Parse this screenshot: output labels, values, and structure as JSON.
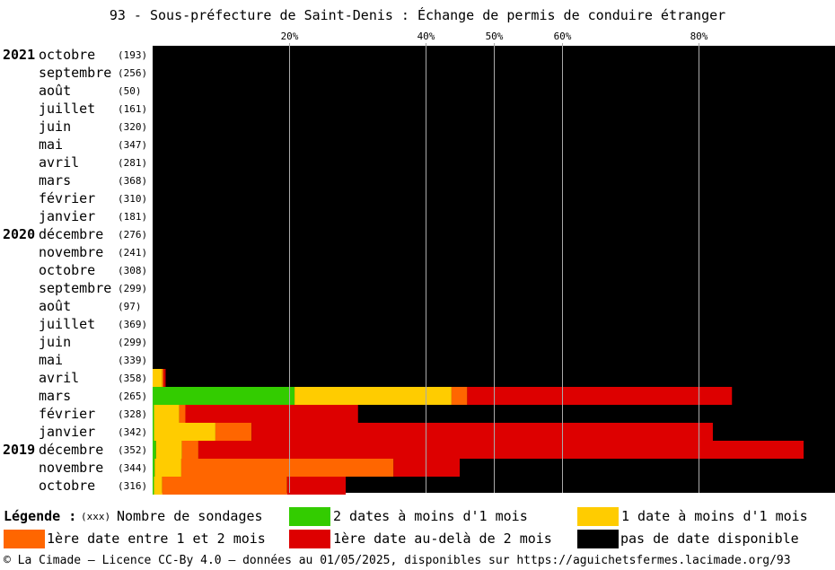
{
  "title": "93 - Sous-préfecture de Saint-Denis : Échange de permis de conduire étranger",
  "chart_data": {
    "type": "bar",
    "orientation": "horizontal",
    "stacked": true,
    "unit": "percent",
    "xlim": [
      0,
      100
    ],
    "x_ticks": [
      {
        "value": 20,
        "label": "20%"
      },
      {
        "value": 40,
        "label": "40%"
      },
      {
        "value": 50,
        "label": "50%"
      },
      {
        "value": 60,
        "label": "60%"
      },
      {
        "value": 80,
        "label": "80%"
      }
    ],
    "grid": true,
    "background_color": "#000000",
    "series": [
      {
        "name": "2 dates à moins d'1 mois",
        "color": "#33cc00"
      },
      {
        "name": "1 date à moins d'1 mois",
        "color": "#ffcc00"
      },
      {
        "name": "1ère date entre 1 et 2 mois",
        "color": "#ff6600"
      },
      {
        "name": "1ère date au-delà de 2 mois",
        "color": "#dd0000"
      },
      {
        "name": "pas de date disponible",
        "color": "#000000"
      }
    ],
    "rows": [
      {
        "year": "2021",
        "month": "octobre",
        "count": "(193)",
        "values": [
          0,
          0,
          0,
          0,
          100
        ]
      },
      {
        "year": "",
        "month": "septembre",
        "count": "(256)",
        "values": [
          0,
          0,
          0,
          0,
          100
        ]
      },
      {
        "year": "",
        "month": "août",
        "count": "(50)",
        "values": [
          0,
          0,
          0,
          0,
          100
        ]
      },
      {
        "year": "",
        "month": "juillet",
        "count": "(161)",
        "values": [
          0,
          0,
          0,
          0,
          100
        ]
      },
      {
        "year": "",
        "month": "juin",
        "count": "(320)",
        "values": [
          0,
          0,
          0,
          0,
          100
        ]
      },
      {
        "year": "",
        "month": "mai",
        "count": "(347)",
        "values": [
          0,
          0,
          0,
          0,
          100
        ]
      },
      {
        "year": "",
        "month": "avril",
        "count": "(281)",
        "values": [
          0,
          0,
          0,
          0,
          100
        ]
      },
      {
        "year": "",
        "month": "mars",
        "count": "(368)",
        "values": [
          0,
          0,
          0,
          0,
          100
        ]
      },
      {
        "year": "",
        "month": "février",
        "count": "(310)",
        "values": [
          0,
          0,
          0,
          0,
          100
        ]
      },
      {
        "year": "",
        "month": "janvier",
        "count": "(181)",
        "values": [
          0,
          0,
          0,
          0,
          100
        ]
      },
      {
        "year": "2020",
        "month": "décembre",
        "count": "(276)",
        "values": [
          0,
          0,
          0,
          0,
          100
        ]
      },
      {
        "year": "",
        "month": "novembre",
        "count": "(241)",
        "values": [
          0,
          0,
          0,
          0,
          100
        ]
      },
      {
        "year": "",
        "month": "octobre",
        "count": "(308)",
        "values": [
          0,
          0,
          0,
          0,
          100
        ]
      },
      {
        "year": "",
        "month": "septembre",
        "count": "(299)",
        "values": [
          0,
          0,
          0,
          0,
          100
        ]
      },
      {
        "year": "",
        "month": "août",
        "count": "(97)",
        "values": [
          0,
          0,
          0,
          0,
          100
        ]
      },
      {
        "year": "",
        "month": "juillet",
        "count": "(369)",
        "values": [
          0,
          0,
          0,
          0,
          100
        ]
      },
      {
        "year": "",
        "month": "juin",
        "count": "(299)",
        "values": [
          0,
          0,
          0,
          0,
          100
        ]
      },
      {
        "year": "",
        "month": "mai",
        "count": "(339)",
        "values": [
          0,
          0,
          0,
          0,
          100
        ]
      },
      {
        "year": "",
        "month": "avril",
        "count": "(358)",
        "values": [
          0,
          1.4,
          0.2,
          0.3,
          98.1
        ]
      },
      {
        "year": "",
        "month": "mars",
        "count": "(265)",
        "values": [
          20.8,
          23.0,
          2.3,
          38.8,
          15.1
        ]
      },
      {
        "year": "",
        "month": "février",
        "count": "(328)",
        "values": [
          0.2,
          3.7,
          0.9,
          25.3,
          69.9
        ]
      },
      {
        "year": "",
        "month": "janvier",
        "count": "(342)",
        "values": [
          0.2,
          9.0,
          5.3,
          67.6,
          17.9
        ]
      },
      {
        "year": "2019",
        "month": "décembre",
        "count": "(352)",
        "values": [
          0.5,
          3.8,
          2.4,
          88.7,
          4.6
        ]
      },
      {
        "year": "",
        "month": "novembre",
        "count": "(344)",
        "values": [
          0.3,
          3.9,
          31.1,
          9.7,
          55.0
        ]
      },
      {
        "year": "",
        "month": "octobre",
        "count": "(316)",
        "values": [
          0.2,
          1.2,
          18.3,
          8.6,
          71.7
        ]
      }
    ]
  },
  "legend": {
    "title": "Légende :",
    "count_marker": "(xxx)",
    "count_label": "Nombre de sondages"
  },
  "footer": "© La Cimade — Licence CC-By 4.0 — données au 01/05/2025, disponibles sur https://aguichetsfermes.lacimade.org/93"
}
